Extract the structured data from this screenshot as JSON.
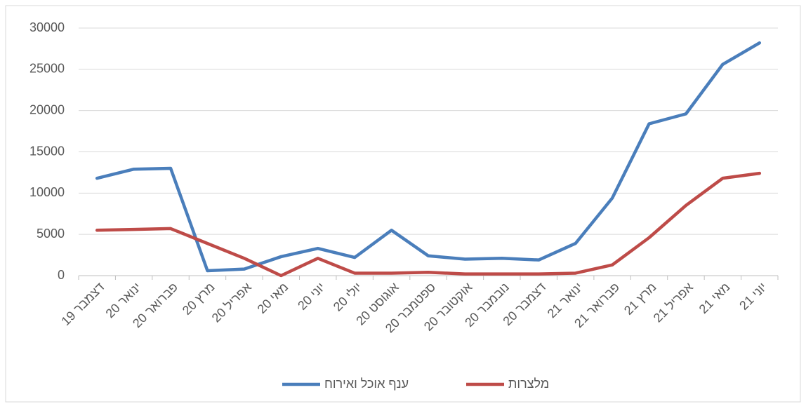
{
  "chart_data": {
    "type": "line",
    "categories": [
      "דצמבר 19",
      "ינואר 20",
      "פברואר 20",
      "מרץ 20",
      "אפריל 20",
      "מאי 20",
      "יוני 20",
      "יולי 20",
      "אוגוסט 20",
      "ספטמבר 20",
      "אוקטובר 20",
      "נובמבר 20",
      "דצמבר 20",
      "ינואר 21",
      "פברואר 21",
      "מרץ 21",
      "אפריל 21",
      "מאי 21",
      "יוני 21"
    ],
    "series": [
      {
        "name": "ענף אוכל ואירוח",
        "color": "#4a7ebb",
        "values": [
          11800,
          12900,
          13000,
          600,
          800,
          2300,
          3300,
          2200,
          5500,
          2400,
          2000,
          2100,
          1900,
          3900,
          9400,
          18400,
          19600,
          25600,
          28200
        ]
      },
      {
        "name": "מלצרות",
        "color": "#be4b48",
        "values": [
          5500,
          5600,
          5700,
          3900,
          2100,
          0,
          2100,
          300,
          300,
          400,
          200,
          200,
          200,
          300,
          1300,
          4600,
          8500,
          11800,
          12400
        ]
      }
    ],
    "ylim": [
      0,
      30000
    ],
    "yticks": [
      0,
      5000,
      10000,
      15000,
      20000,
      25000,
      30000
    ],
    "grid": true,
    "legend": "bottom"
  }
}
